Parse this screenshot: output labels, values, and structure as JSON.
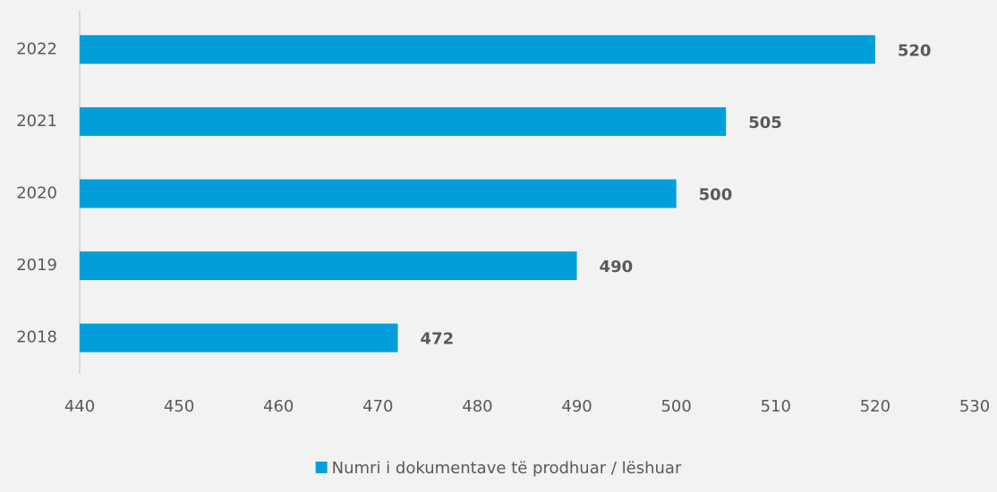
{
  "chart_data": {
    "type": "bar",
    "orientation": "horizontal",
    "categories": [
      "2018",
      "2019",
      "2020",
      "2021",
      "2022"
    ],
    "series": [
      {
        "name": "Numri i dokumentave të prodhuar / lëshuar",
        "color": "#009fda",
        "values": [
          472,
          490,
          500,
          505,
          520
        ]
      }
    ],
    "xlim": [
      440,
      530
    ],
    "xticks": [
      440,
      450,
      460,
      470,
      480,
      490,
      500,
      510,
      520,
      530
    ],
    "grid": false,
    "legend": "bottom"
  }
}
